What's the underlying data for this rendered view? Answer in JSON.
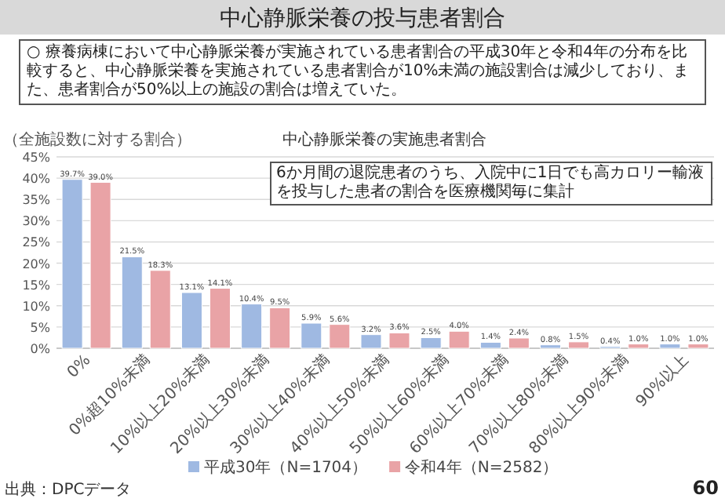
{
  "chart_data": {
    "type": "bar",
    "title": "中心静脈栄養の実施患者割合",
    "subtitle": "○ 療養病棟において中心静脈栄養が実施されている患者割合の平成30年と令和4年の分布を比較すると、中心静脈栄養を実施されている患者割合が10%未満の施設割合は減少しており、また、患者割合が50%以上の施設の割合は増えていた。",
    "ylabel": "（全施設数に対する割合）",
    "annotations": [
      "中心静脈栄養の投与患者割合",
      "6か月間の退院患者のうち、入院中に1日でも高カロリー輸液を投与した患者の割合を医療機関毎に集計",
      "出典：DPCデータ",
      "60"
    ],
    "categories": [
      "0%",
      "0%超10%未満",
      "10%以上20%未満",
      "20%以上30%未満",
      "30%以上40%未満",
      "40%以上50%未満",
      "50%以上60%未満",
      "60%以上70%未満",
      "70%以上80%未満",
      "80%以上90%未満",
      "90%以上"
    ],
    "series": [
      {
        "name": "平成30年（N=1704）",
        "color": "#9fb9e2",
        "values": [
          39.7,
          21.5,
          13.1,
          10.4,
          5.9,
          3.2,
          2.5,
          1.4,
          0.8,
          0.4,
          1.0
        ],
        "value_labels": [
          "39.7%",
          "21.5%",
          "13.1%",
          "10.4%",
          "5.9%",
          "3.2%",
          "2.5%",
          "1.4%",
          "0.8%",
          "0.4%",
          "1.0%"
        ]
      },
      {
        "name": "令和4年（N=2582）",
        "color": "#e9a3a6",
        "values": [
          39.0,
          18.3,
          14.1,
          9.5,
          5.6,
          3.6,
          4.0,
          2.4,
          1.5,
          1.0,
          1.0
        ],
        "value_labels": [
          "39.0%",
          "18.3%",
          "14.1%",
          "9.5%",
          "5.6%",
          "3.6%",
          "4.0%",
          "2.4%",
          "1.5%",
          "1.0%",
          "1.0%"
        ]
      }
    ],
    "ylim": [
      0,
      45
    ],
    "yticks": [
      {
        "value": 0,
        "label": "0%"
      },
      {
        "value": 5,
        "label": "5%"
      },
      {
        "value": 10,
        "label": "10%"
      },
      {
        "value": 15,
        "label": "15%"
      },
      {
        "value": 20,
        "label": "20%"
      },
      {
        "value": 25,
        "label": "25%"
      },
      {
        "value": 30,
        "label": "30%"
      },
      {
        "value": 35,
        "label": "35%"
      },
      {
        "value": 40,
        "label": "40%"
      },
      {
        "value": 45,
        "label": "45%"
      }
    ],
    "grid": "y",
    "legend": "bottom"
  }
}
